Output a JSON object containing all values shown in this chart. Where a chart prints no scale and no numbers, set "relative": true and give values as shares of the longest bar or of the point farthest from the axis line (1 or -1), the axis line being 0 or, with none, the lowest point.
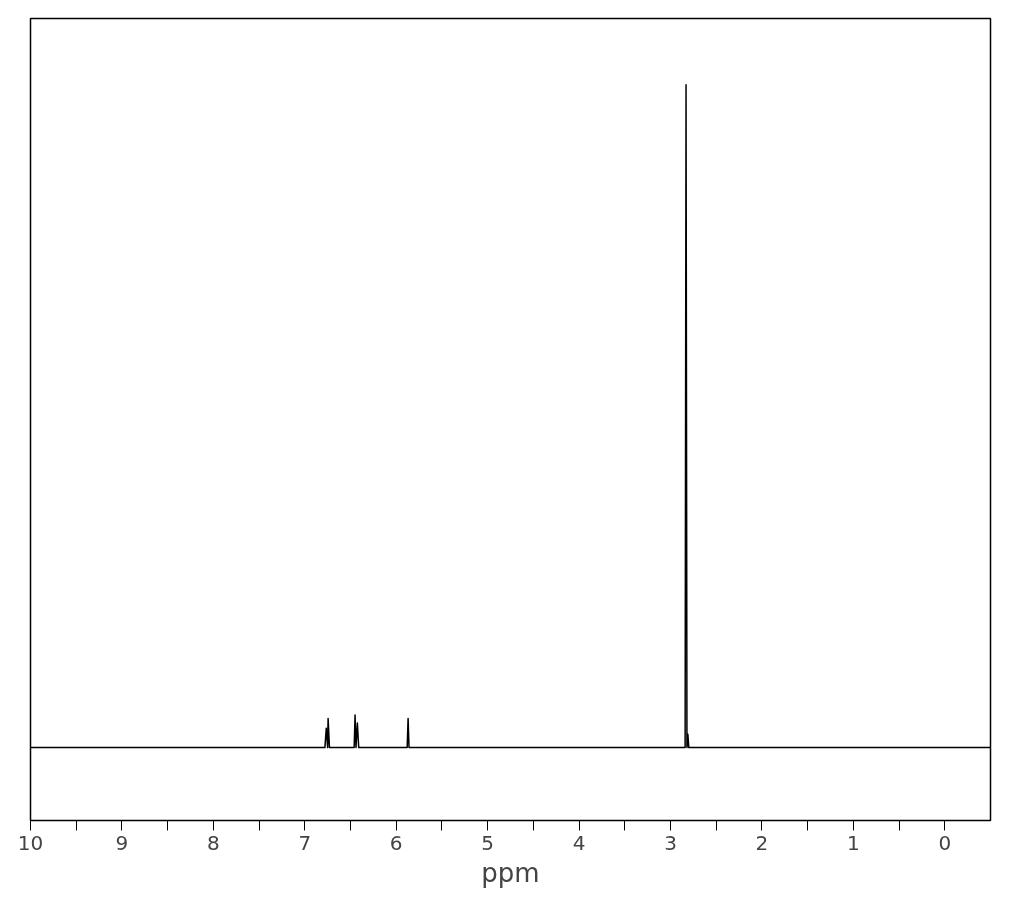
{
  "chart_data": {
    "type": "line",
    "relative": true,
    "xlabel": "ppm",
    "color": "#000000",
    "grid": false,
    "marker": "none",
    "line_style": "solid",
    "xlim": [
      10,
      -0.5
    ],
    "xticks": [
      10,
      9,
      8,
      7,
      6,
      5,
      4,
      3,
      2,
      1,
      0
    ],
    "x": [
      10,
      6.78,
      6.765,
      6.75,
      6.745,
      6.73,
      6.46,
      6.45,
      6.44,
      6.425,
      6.41,
      5.88,
      5.87,
      5.86,
      2.84,
      2.83,
      2.82,
      2.81,
      2.8,
      -0.5
    ],
    "values": [
      0,
      0,
      0.029,
      0,
      0.044,
      0,
      0,
      0.049,
      0,
      0.037,
      0,
      0,
      0.044,
      0,
      0,
      1,
      0,
      0.02,
      0,
      0
    ]
  }
}
